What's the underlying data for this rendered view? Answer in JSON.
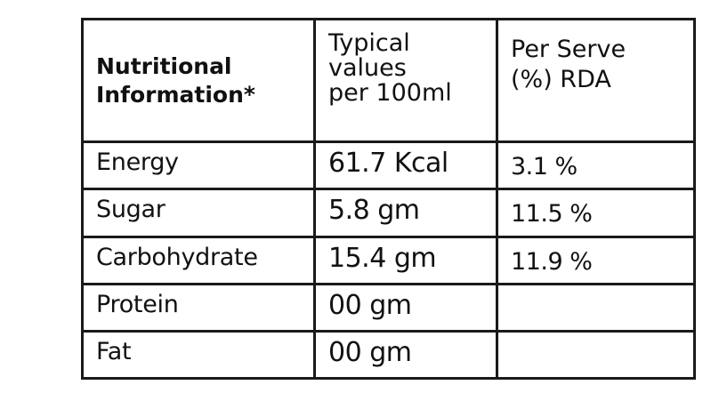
{
  "table": {
    "header": {
      "col1_line1": "Nutritional",
      "col1_line2": "Information*",
      "col2_line1": "Typical",
      "col2_line2": "values",
      "col2_line3": "per 100ml",
      "col3_line1": "Per Serve",
      "col3_line2": "(%) RDA"
    },
    "rows": [
      {
        "nutrient": "Energy",
        "per_100ml": "61.7 Kcal",
        "rda": "3.1 %"
      },
      {
        "nutrient": "Sugar",
        "per_100ml": "5.8 gm",
        "rda": "11.5 %"
      },
      {
        "nutrient": "Carbohydrate",
        "per_100ml": "15.4 gm",
        "rda": "11.9 %"
      },
      {
        "nutrient": "Protein",
        "per_100ml": "00 gm",
        "rda": ""
      },
      {
        "nutrient": "Fat",
        "per_100ml": "00 gm",
        "rda": ""
      }
    ]
  }
}
